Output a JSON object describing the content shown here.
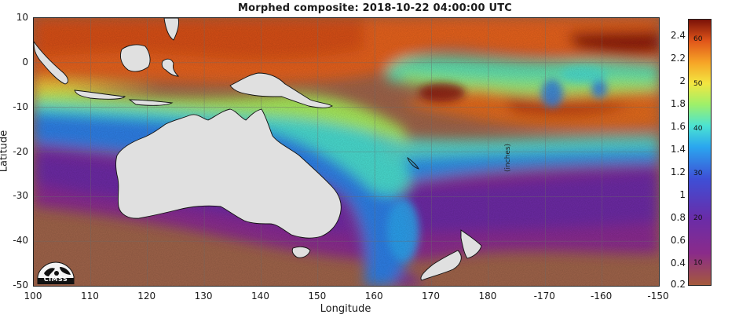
{
  "title": "Morphed composite: 2018-10-22 04:00:00 UTC",
  "x_axis": {
    "label": "Longitude",
    "ticks": [
      "100",
      "110",
      "120",
      "130",
      "140",
      "150",
      "160",
      "170",
      "180",
      "-170",
      "-160",
      "-150"
    ]
  },
  "y_axis": {
    "label": "Latitude",
    "ticks": [
      "10",
      "0",
      "-10",
      "-20",
      "-30",
      "-40",
      "-50"
    ]
  },
  "colorbar": {
    "units_label": "(inches)",
    "inches_ticks": [
      "2.4",
      "2.2",
      "2",
      "1.8",
      "1.6",
      "1.4",
      "1.2",
      "1",
      "0.8",
      "0.6",
      "0.4",
      "0.2"
    ],
    "mm_ticks": [
      "60",
      "50",
      "40",
      "30",
      "20",
      "10"
    ],
    "colors": [
      "#a55a3c",
      "#8a2b8a",
      "#6a2ca8",
      "#3e4fd6",
      "#2aa6ef",
      "#4be3d2",
      "#9ef06a",
      "#f3e640",
      "#f6a326",
      "#e0551a",
      "#7a1208"
    ]
  },
  "logo": {
    "text": "CIMSS"
  },
  "map": {
    "regions": [
      "Australia",
      "New Zealand",
      "New Guinea",
      "Indonesia",
      "Southwest Pacific"
    ],
    "land_color": "#e0e0e0"
  }
}
